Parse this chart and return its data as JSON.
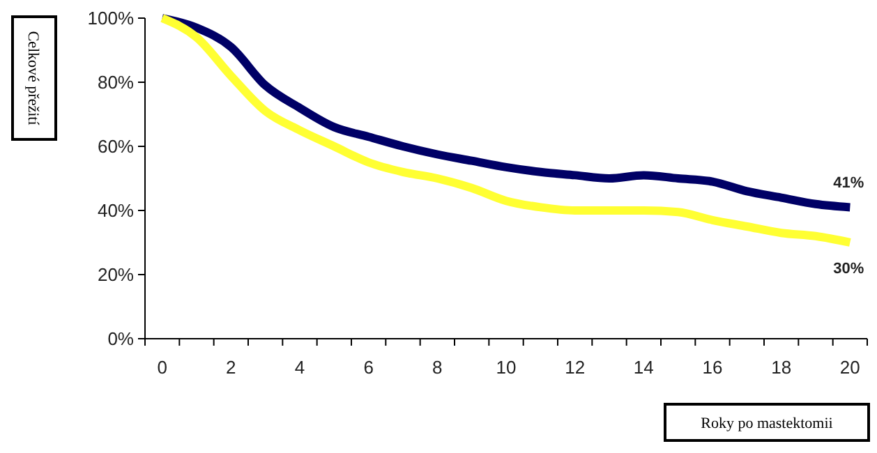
{
  "chart_data": {
    "type": "line",
    "ylabel": "Celkové přežití",
    "xlabel": "Roky po mastektomii",
    "categories": [
      "0",
      null,
      "2",
      null,
      "4",
      null,
      "6",
      null,
      "8",
      null,
      "10",
      null,
      "12",
      null,
      "14",
      null,
      "16",
      null,
      "18",
      null,
      "20"
    ],
    "series": [
      {
        "color": "#000066",
        "values": [
          100,
          97,
          91,
          79,
          72,
          66,
          63,
          60,
          57.5,
          55.5,
          53.5,
          52,
          51,
          50,
          51,
          50,
          49,
          46,
          44,
          42,
          41
        ]
      },
      {
        "color": "#ffff33",
        "values": [
          100,
          94,
          82,
          71,
          65,
          60,
          55,
          52,
          50,
          47,
          43,
          41,
          40,
          40,
          40,
          39.5,
          37,
          35,
          33,
          32,
          30
        ]
      }
    ],
    "annotations": [
      {
        "text": "41%",
        "x": "20",
        "y": 41
      },
      {
        "text": "30%",
        "x": "20",
        "y": 30
      }
    ],
    "ylim": [
      0,
      100
    ],
    "yticks": [
      {
        "value": 0,
        "label": "0%"
      },
      {
        "value": 20,
        "label": "20%"
      },
      {
        "value": 40,
        "label": "40%"
      },
      {
        "value": 60,
        "label": "60%"
      },
      {
        "value": 80,
        "label": "80%"
      },
      {
        "value": 100,
        "label": "100%"
      }
    ],
    "grid": false,
    "marker": "none",
    "line_style": "solid"
  }
}
